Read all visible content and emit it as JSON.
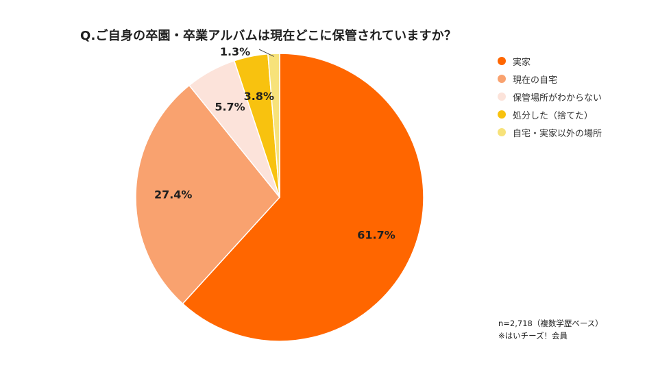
{
  "title": "Q.ご自身の卒園・卒業アルバムは現在どこに保管されていますか？",
  "chart_data": {
    "type": "pie",
    "title": "Q.ご自身の卒園・卒業アルバムは現在どこに保管されていますか？",
    "slices": [
      {
        "label": "実家",
        "value": 61.7,
        "display": "61.7%",
        "color": "#ff6600"
      },
      {
        "label": "現在の自宅",
        "value": 27.4,
        "display": "27.4%",
        "color": "#f9a26f"
      },
      {
        "label": "保管場所がわからない",
        "value": 5.7,
        "display": "5.7%",
        "color": "#fce3da"
      },
      {
        "label": "処分した（捨てた）",
        "value": 3.8,
        "display": "3.8%",
        "color": "#f8c20f"
      },
      {
        "label": "自宅・実家以外の場所",
        "value": 1.3,
        "display": "1.3%",
        "color": "#f7e27a"
      }
    ],
    "legend_position": "right"
  },
  "footnote": {
    "line1": "n=2,718（複数学歴ベース）",
    "line2": "※はいチーズ！会員"
  }
}
